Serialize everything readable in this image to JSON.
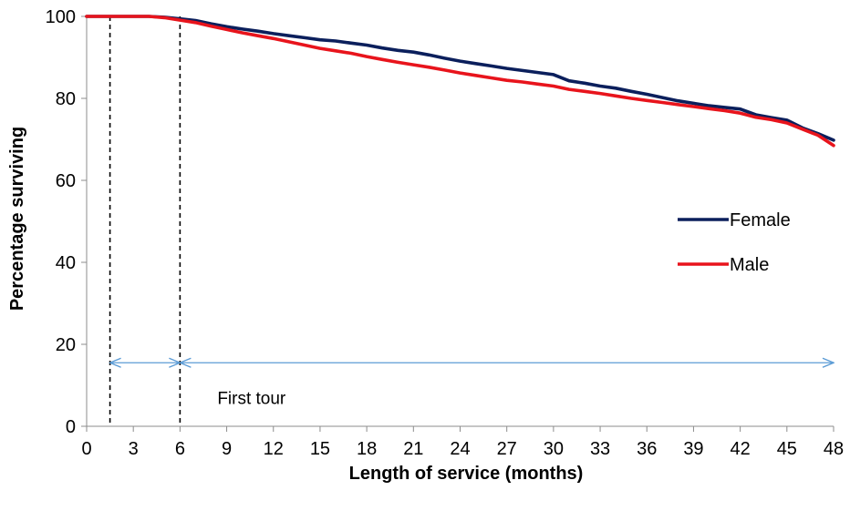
{
  "chart_data": {
    "type": "line",
    "xlabel": "Length of service (months)",
    "ylabel": "Percentage surviving",
    "xlim": [
      0,
      48
    ],
    "ylim": [
      0,
      100
    ],
    "xticks": [
      0,
      3,
      6,
      9,
      12,
      15,
      18,
      21,
      24,
      27,
      30,
      33,
      36,
      39,
      42,
      45,
      48
    ],
    "yticks": [
      0,
      20,
      40,
      60,
      80,
      100
    ],
    "grid": false,
    "legend_position": "right",
    "series": [
      {
        "name": "Female",
        "color": "#0b1f5c",
        "x": [
          0,
          1,
          2,
          3,
          4,
          5,
          6,
          7,
          8,
          9,
          10,
          11,
          12,
          13,
          14,
          15,
          16,
          17,
          18,
          19,
          20,
          21,
          22,
          23,
          24,
          25,
          26,
          27,
          28,
          29,
          30,
          31,
          32,
          33,
          34,
          35,
          36,
          37,
          38,
          39,
          40,
          41,
          42,
          43,
          44,
          45,
          46,
          47,
          48
        ],
        "values": [
          100,
          100,
          100,
          100,
          100,
          99.8,
          99.4,
          99,
          98.2,
          97.5,
          96.9,
          96.4,
          95.8,
          95.3,
          94.8,
          94.3,
          94,
          93.5,
          93,
          92.3,
          91.7,
          91.3,
          90.6,
          89.8,
          89.1,
          88.5,
          87.9,
          87.3,
          86.8,
          86.3,
          85.8,
          84.3,
          83.7,
          83,
          82.5,
          81.7,
          81,
          80.2,
          79.4,
          78.8,
          78.2,
          77.8,
          77.4,
          76,
          75.3,
          74.7,
          72.8,
          71.4,
          69.8
        ]
      },
      {
        "name": "Male",
        "color": "#e8141c",
        "x": [
          0,
          1,
          2,
          3,
          4,
          5,
          6,
          7,
          8,
          9,
          10,
          11,
          12,
          13,
          14,
          15,
          16,
          17,
          18,
          19,
          20,
          21,
          22,
          23,
          24,
          25,
          26,
          27,
          28,
          29,
          30,
          31,
          32,
          33,
          34,
          35,
          36,
          37,
          38,
          39,
          40,
          41,
          42,
          43,
          44,
          45,
          46,
          47,
          48
        ],
        "values": [
          100,
          100,
          100,
          100,
          100,
          99.7,
          99.1,
          98.5,
          97.6,
          96.8,
          96,
          95.3,
          94.6,
          93.8,
          93,
          92.2,
          91.6,
          91,
          90.2,
          89.5,
          88.8,
          88.2,
          87.6,
          86.9,
          86.2,
          85.6,
          85,
          84.4,
          84,
          83.5,
          83,
          82.2,
          81.7,
          81.2,
          80.6,
          80,
          79.5,
          79,
          78.5,
          78,
          77.5,
          77,
          76.4,
          75.4,
          74.8,
          74,
          72.5,
          71,
          68.5
        ]
      }
    ],
    "annotations": {
      "vlines_x": [
        1.5,
        6
      ],
      "arrows": [
        {
          "from": 1.5,
          "to": 6,
          "y": 15.5
        },
        {
          "from": 6,
          "to": 48,
          "y": 15.5
        }
      ],
      "arrow_color": "#5b9bd5",
      "text": "First tour",
      "text_x": 8.4,
      "text_y": 5.5
    }
  }
}
